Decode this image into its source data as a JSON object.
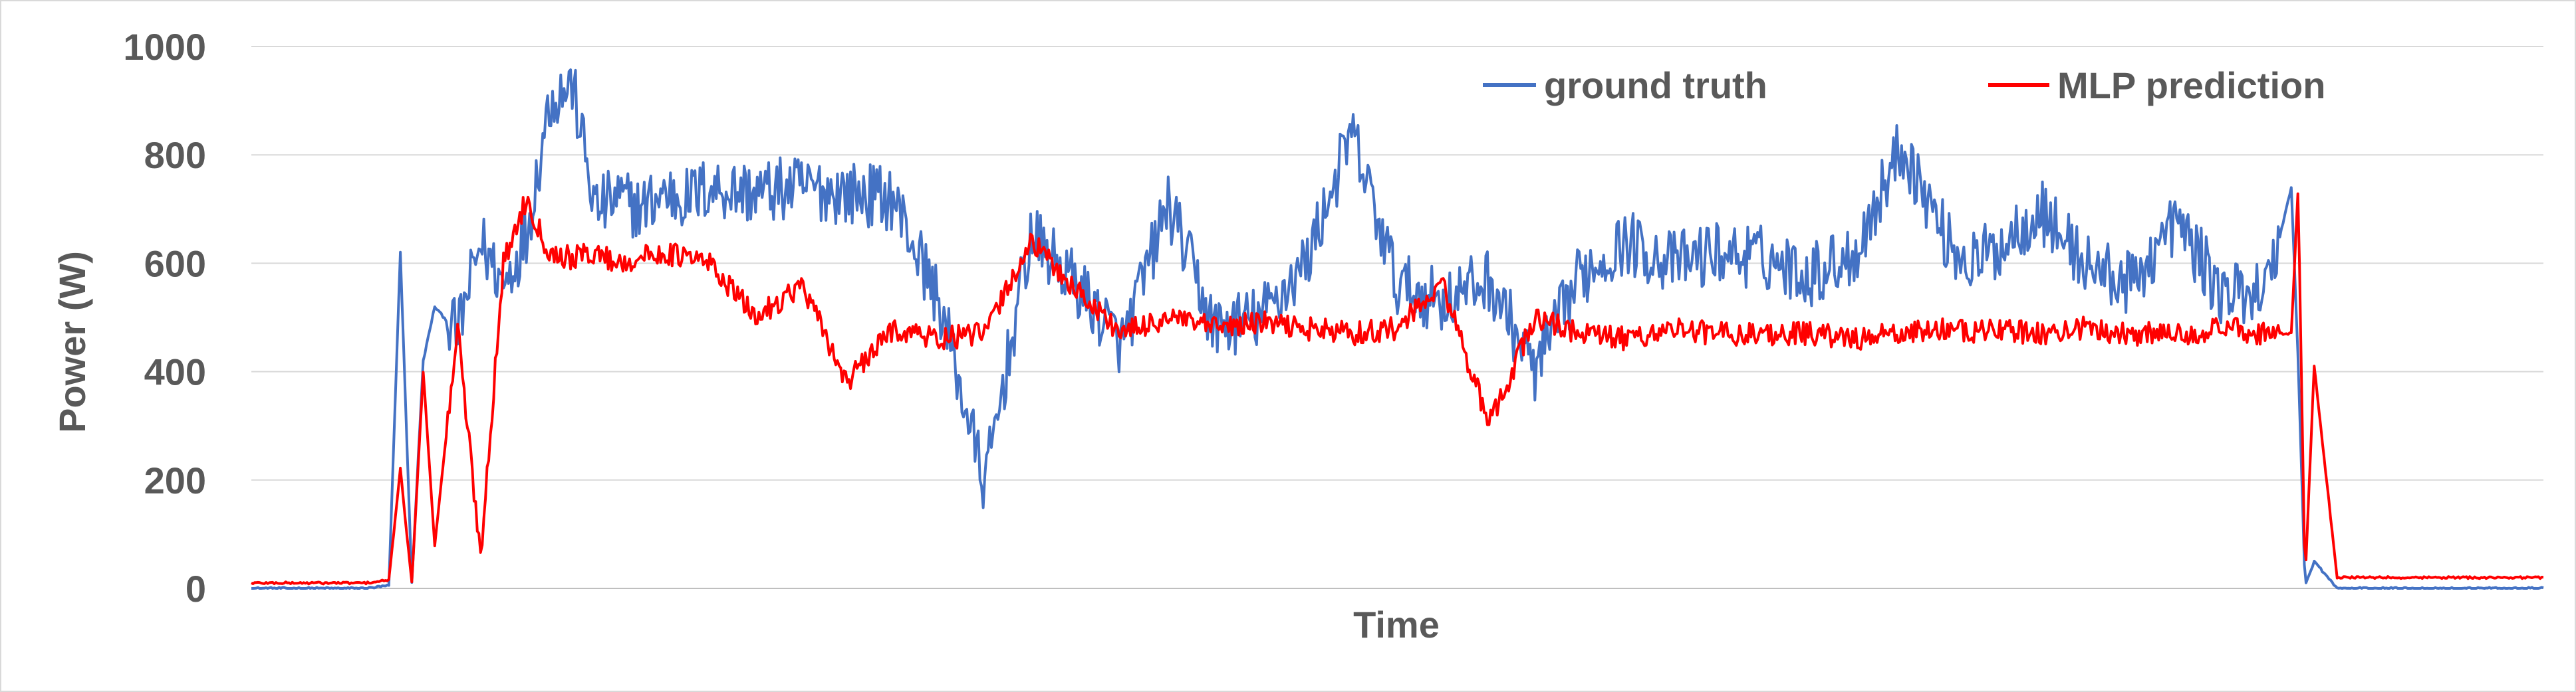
{
  "chart_data": {
    "type": "line",
    "xlabel": "Time",
    "ylabel": "Power (W)",
    "ylim": [
      0,
      1000
    ],
    "yticks": [
      "0",
      "200",
      "400",
      "600",
      "800",
      "1000"
    ],
    "grid": true,
    "legend_position": "top-right",
    "x_note": "x is sample index along Time (no tick labels printed)",
    "series": [
      {
        "name": "ground truth",
        "color": "#4472C4",
        "x": [
          0,
          5,
          6,
          6.5,
          7,
          7.5,
          8,
          9,
          10,
          11,
          12,
          13,
          14,
          15,
          16,
          17,
          18,
          19,
          20,
          22,
          24,
          26,
          28,
          30,
          32,
          34,
          36,
          38,
          40,
          42,
          44,
          46,
          48,
          50,
          52,
          54,
          56,
          58,
          60,
          62,
          64,
          66,
          68,
          70,
          72,
          74,
          75,
          76,
          78,
          80,
          82,
          84,
          86,
          88,
          90,
          92,
          94,
          96,
          98,
          100
        ],
        "values": [
          0,
          0,
          5,
          620,
          10,
          420,
          520,
          470,
          640,
          560,
          650,
          900,
          930,
          700,
          720,
          700,
          730,
          720,
          740,
          730,
          740,
          730,
          720,
          530,
          190,
          650,
          560,
          450,
          710,
          480,
          500,
          600,
          840,
          560,
          530,
          570,
          400,
          580,
          640,
          600,
          620,
          610,
          580,
          620,
          820,
          640,
          600,
          620,
          700,
          600,
          560,
          680,
          540,
          600,
          570,
          580,
          560,
          560,
          590,
          580
        ],
        "x_tail": [
          88,
          89,
          89.3,
          89.6,
          90,
          91,
          100
        ],
        "values_tail": [
          560,
          740,
          420,
          5,
          50,
          0,
          0
        ]
      },
      {
        "name": "MLP prediction",
        "color": "#FF0000",
        "x": [
          0,
          5,
          6,
          6.5,
          7,
          7.5,
          8,
          9,
          10,
          11,
          12,
          13,
          14,
          15,
          16,
          17,
          18,
          19,
          20,
          22,
          24,
          26,
          28,
          30,
          32,
          34,
          36,
          38,
          40,
          42,
          44,
          46,
          48,
          50,
          52,
          54,
          56,
          58,
          60,
          62,
          64,
          66,
          68,
          70,
          72,
          74,
          75,
          76,
          78,
          80,
          82,
          84,
          86,
          88,
          90,
          92,
          94,
          96,
          98,
          100
        ],
        "values": [
          10,
          10,
          15,
          220,
          10,
          400,
          80,
          480,
          60,
          600,
          720,
          620,
          610,
          620,
          600,
          610,
          620,
          610,
          600,
          500,
          560,
          380,
          480,
          460,
          470,
          640,
          550,
          470,
          500,
          480,
          490,
          480,
          470,
          480,
          560,
          300,
          500,
          470,
          460,
          480,
          470,
          470,
          470,
          460,
          470,
          480,
          470,
          480,
          470,
          480,
          470,
          470,
          480,
          470,
          480,
          470,
          480,
          470,
          470,
          470
        ],
        "x_tail": [
          88,
          89,
          89.3,
          89.6,
          90,
          91,
          100
        ],
        "values_tail": [
          470,
          470,
          740,
          10,
          410,
          20,
          20
        ]
      }
    ]
  }
}
